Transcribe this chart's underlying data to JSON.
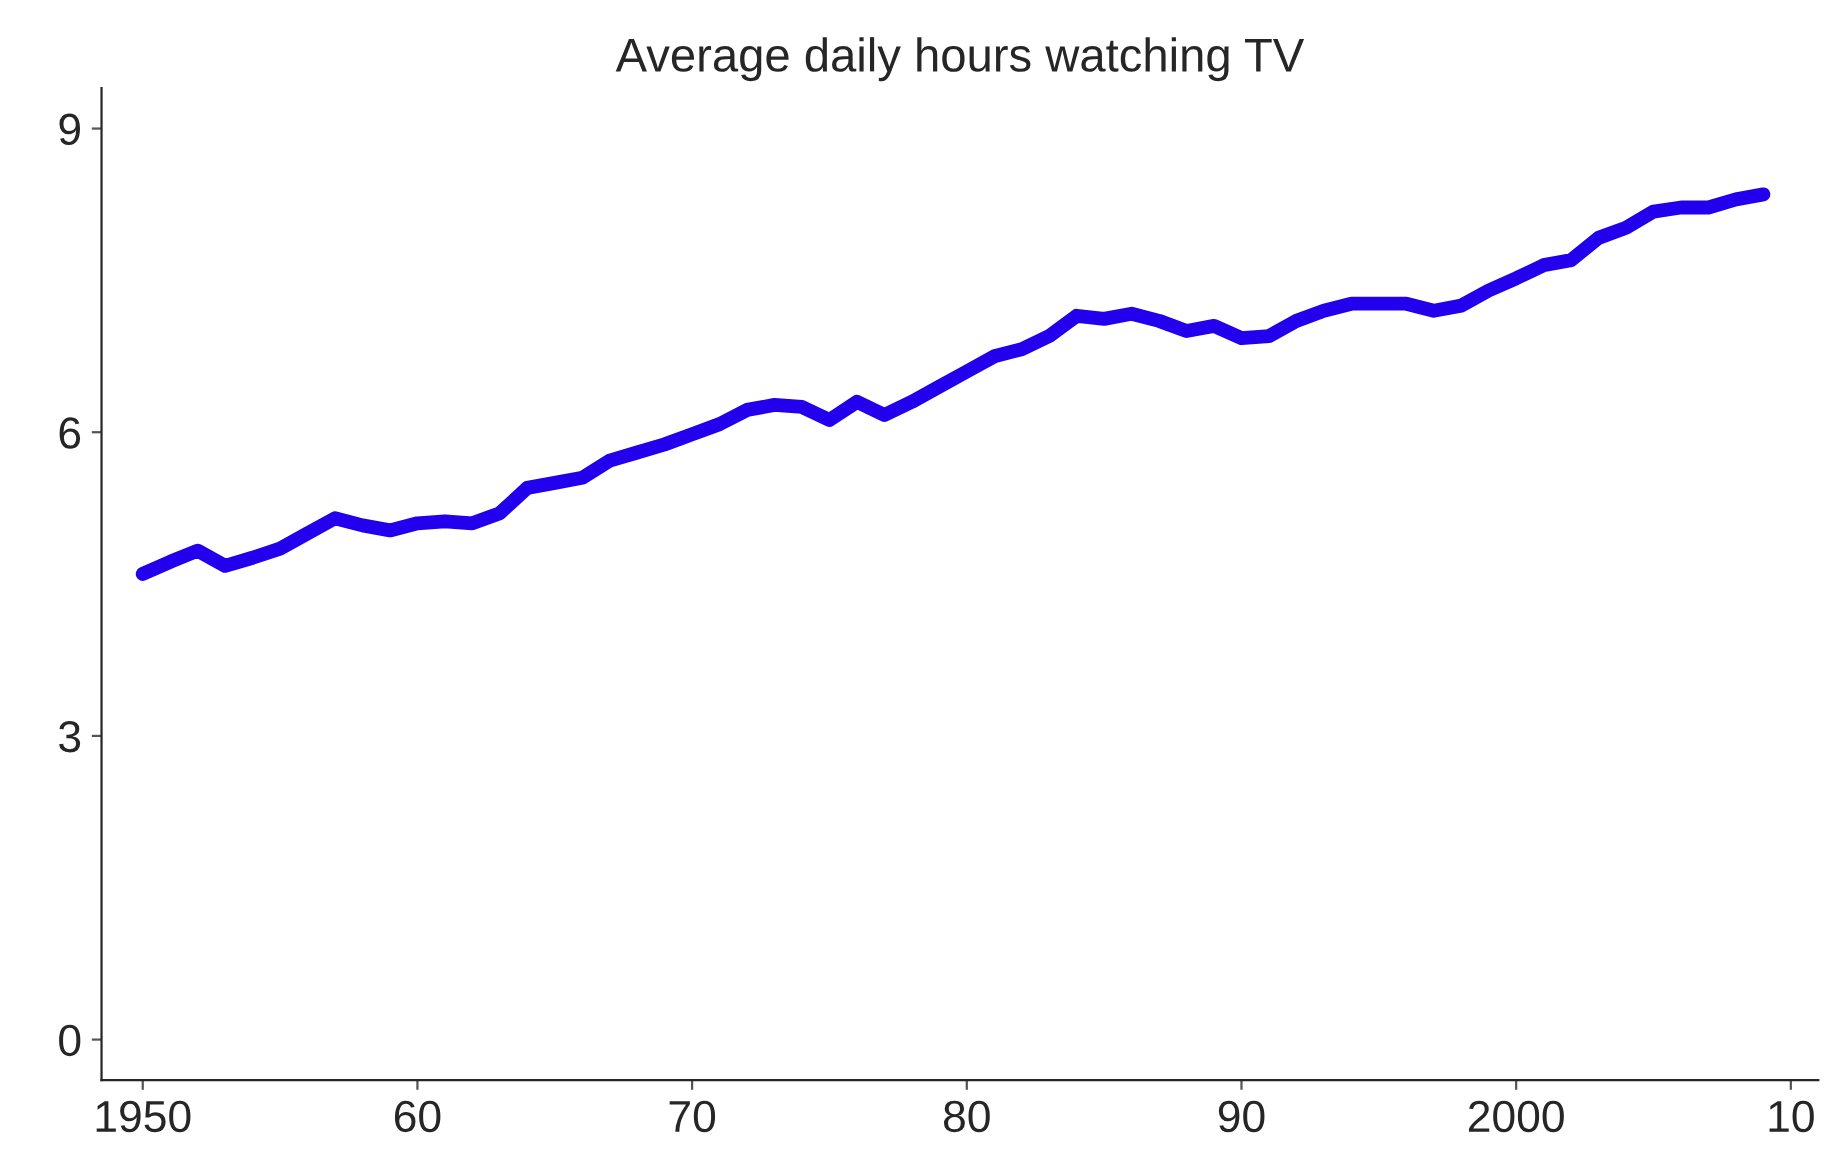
{
  "chart_data": {
    "type": "line",
    "title": "Average daily hours watching TV",
    "x": [
      1950,
      1951,
      1952,
      1953,
      1954,
      1955,
      1956,
      1957,
      1958,
      1959,
      1960,
      1961,
      1962,
      1963,
      1964,
      1965,
      1966,
      1967,
      1968,
      1969,
      1970,
      1971,
      1972,
      1973,
      1974,
      1975,
      1976,
      1977,
      1978,
      1979,
      1980,
      1981,
      1982,
      1983,
      1984,
      1985,
      1986,
      1987,
      1988,
      1989,
      1990,
      1991,
      1992,
      1993,
      1994,
      1995,
      1996,
      1997,
      1998,
      1999,
      2000,
      2001,
      2002,
      2003,
      2004,
      2005,
      2006,
      2007,
      2008,
      2009
    ],
    "series": [
      {
        "color": "#2200ee",
        "values": [
          4.6,
          4.72,
          4.83,
          4.68,
          4.76,
          4.85,
          5.0,
          5.15,
          5.08,
          5.03,
          5.1,
          5.12,
          5.1,
          5.2,
          5.45,
          5.5,
          5.55,
          5.72,
          5.8,
          5.88,
          5.98,
          6.08,
          6.22,
          6.27,
          6.25,
          6.12,
          6.3,
          6.17,
          6.3,
          6.45,
          6.6,
          6.75,
          6.82,
          6.95,
          7.15,
          7.12,
          7.17,
          7.1,
          7.0,
          7.05,
          6.93,
          6.95,
          7.1,
          7.2,
          7.27,
          7.27,
          7.27,
          7.2,
          7.25,
          7.4,
          7.52,
          7.65,
          7.7,
          7.92,
          8.02,
          8.18,
          8.22,
          8.22,
          8.3,
          8.35
        ]
      }
    ],
    "xlim": [
      1948.5,
      2011
    ],
    "ylim": [
      -0.4,
      9.4
    ],
    "xticks": [
      {
        "value": 1950,
        "label": "1950"
      },
      {
        "value": 1960,
        "label": "60"
      },
      {
        "value": 1970,
        "label": "70"
      },
      {
        "value": 1980,
        "label": "80"
      },
      {
        "value": 1990,
        "label": "90"
      },
      {
        "value": 2000,
        "label": "2000"
      },
      {
        "value": 2010,
        "label": "10"
      }
    ],
    "yticks": [
      0,
      3,
      6,
      9
    ],
    "grid": false,
    "legend": false
  }
}
